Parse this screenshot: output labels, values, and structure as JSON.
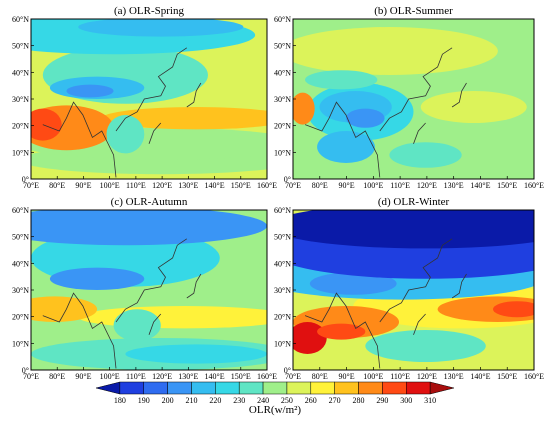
{
  "panels": [
    {
      "id": "spring",
      "title": "(a) OLR-Spring"
    },
    {
      "id": "summer",
      "title": "(b) OLR-Summer"
    },
    {
      "id": "autumn",
      "title": "(c) OLR-Autumn"
    },
    {
      "id": "winter",
      "title": "(d) OLR-Winter"
    }
  ],
  "map_extent": {
    "lon_range": [
      70,
      160
    ],
    "lat_range": [
      0,
      60
    ]
  },
  "lon_ticks": [
    "70°E",
    "80°E",
    "90°E",
    "100°E",
    "110°E",
    "120°E",
    "130°E",
    "140°E",
    "150°E",
    "160°E"
  ],
  "lat_ticks": [
    "0°",
    "10°N",
    "20°N",
    "30°N",
    "40°N",
    "50°N",
    "60°N"
  ],
  "colorbar": {
    "label": "OLR(w/m²)",
    "ticks": [
      180,
      190,
      200,
      210,
      220,
      230,
      240,
      250,
      260,
      270,
      280,
      290,
      300,
      310
    ],
    "colors": [
      "#0a1aa8",
      "#1f3fe0",
      "#2f6cf0",
      "#3a95f5",
      "#35bdf0",
      "#36d8e6",
      "#5fe5c4",
      "#9fef8a",
      "#dcf35a",
      "#fff23a",
      "#ffc21e",
      "#ff8a18",
      "#ff4a14",
      "#e01010",
      "#a80e0e"
    ]
  }
}
